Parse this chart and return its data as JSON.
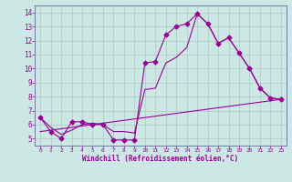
{
  "xlabel": "Windchill (Refroidissement éolien,°C)",
  "background_color": "#cce8e4",
  "grid_color": "#b0c8c4",
  "line_color": "#990099",
  "spine_color": "#666699",
  "xlim": [
    -0.5,
    23.5
  ],
  "ylim": [
    4.5,
    14.5
  ],
  "yticks": [
    5,
    6,
    7,
    8,
    9,
    10,
    11,
    12,
    13,
    14
  ],
  "xticks": [
    0,
    1,
    2,
    3,
    4,
    5,
    6,
    7,
    8,
    9,
    10,
    11,
    12,
    13,
    14,
    15,
    16,
    17,
    18,
    19,
    20,
    21,
    22,
    23
  ],
  "line1_x": [
    0,
    1,
    2,
    3,
    4,
    5,
    6,
    7,
    8,
    9,
    10,
    11,
    12,
    13,
    14,
    15,
    16,
    17,
    18,
    19,
    20,
    21,
    22,
    23
  ],
  "line1_y": [
    6.5,
    5.5,
    5.0,
    6.2,
    6.2,
    6.0,
    6.0,
    4.9,
    4.9,
    4.9,
    10.4,
    10.5,
    12.4,
    13.0,
    13.2,
    13.9,
    13.2,
    11.8,
    12.2,
    11.1,
    10.0,
    8.6,
    7.9,
    7.8
  ],
  "line2_x": [
    0,
    1,
    2,
    3,
    4,
    5,
    6,
    7,
    8,
    9,
    10,
    11,
    12,
    13,
    14,
    15,
    16,
    17,
    18,
    19,
    20,
    21,
    22,
    23
  ],
  "line2_y": [
    6.5,
    5.8,
    5.3,
    5.6,
    6.0,
    6.1,
    6.0,
    5.5,
    5.5,
    5.4,
    8.5,
    8.6,
    10.4,
    10.8,
    11.5,
    13.9,
    13.2,
    11.8,
    12.2,
    11.1,
    10.0,
    8.6,
    7.9,
    7.8
  ],
  "line3_x": [
    0,
    23
  ],
  "line3_y": [
    5.5,
    7.8
  ]
}
